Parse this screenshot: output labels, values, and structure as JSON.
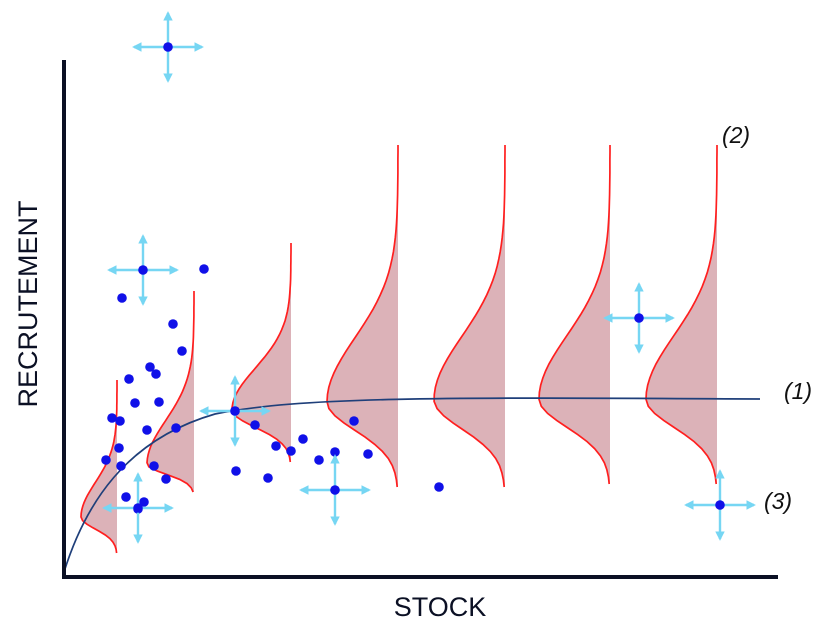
{
  "axes": {
    "x_label": "STOCK",
    "y_label": "RECRUTEMENT"
  },
  "labels": {
    "curve_1": "(1)",
    "curve_2": "(2)",
    "curve_3": "(3)"
  },
  "colors": {
    "axis": "#0b1024",
    "curve": "#1f3f7a",
    "distribution_line": "#ff1f1f",
    "distribution_fill": "#d8aab0",
    "point": "#1010e8",
    "arrow": "#76d6f3"
  }
}
